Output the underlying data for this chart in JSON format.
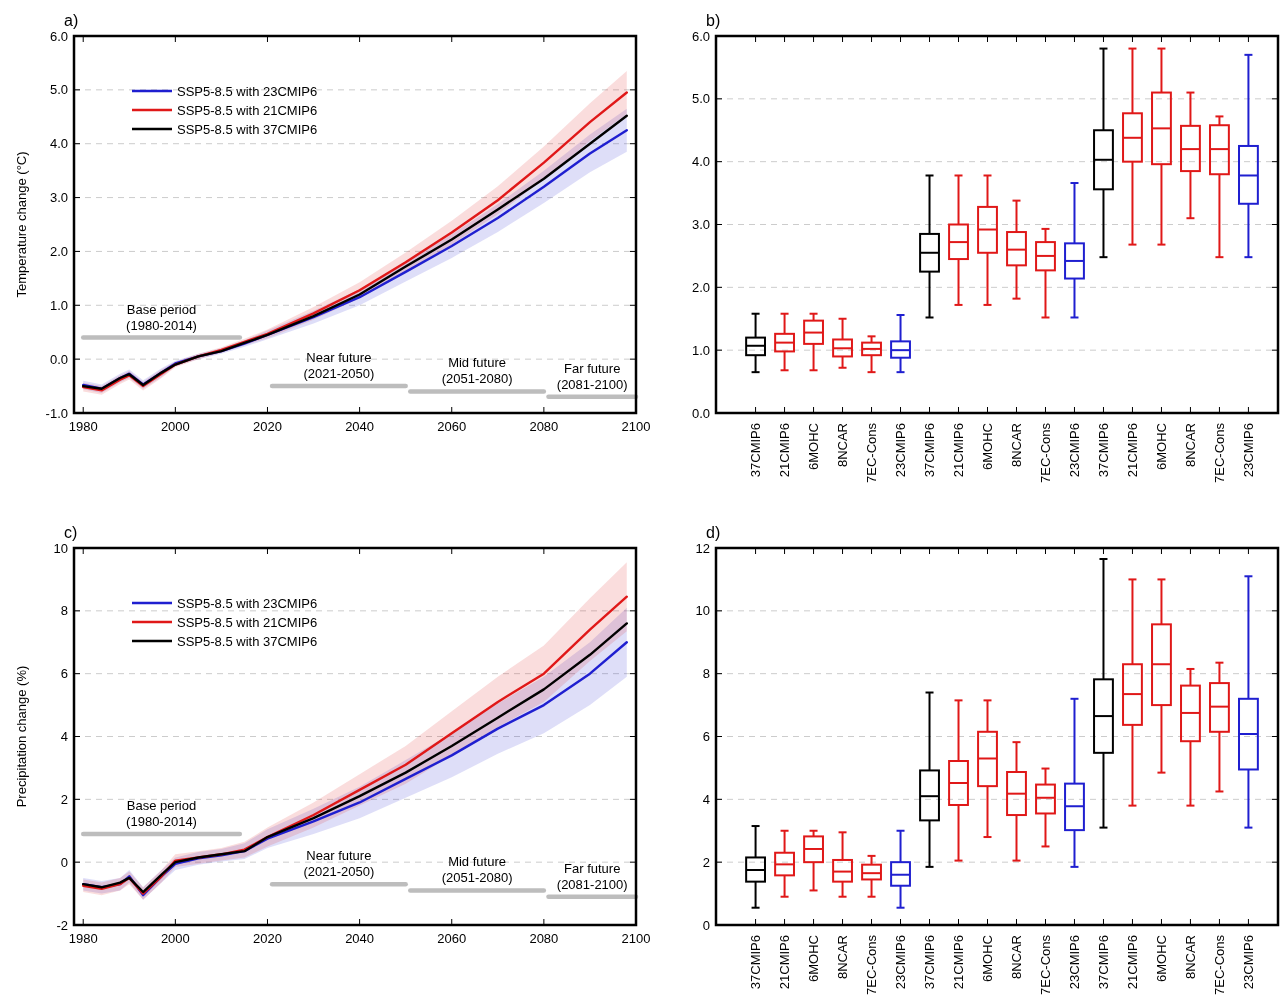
{
  "chart_data": [
    {
      "type": "line",
      "title": "a)",
      "ylabel": "Temperature change (°C)",
      "xlim": [
        1978,
        2100
      ],
      "xticks": [
        1980,
        2000,
        2020,
        2040,
        2060,
        2080,
        2100
      ],
      "ylim": [
        -1,
        6
      ],
      "yticks": [
        {
          "value": -1,
          "label": "-1.0"
        },
        {
          "value": 0,
          "label": "0.0"
        },
        {
          "value": 1,
          "label": "1.0"
        },
        {
          "value": 2,
          "label": "2.0"
        },
        {
          "value": 3,
          "label": "3.0"
        },
        {
          "value": 4,
          "label": "4.0"
        },
        {
          "value": 5,
          "label": "5.0"
        },
        {
          "value": 6,
          "label": "6.0"
        }
      ],
      "grid": "y",
      "legend": "top left",
      "x": [
        1980,
        1984,
        1988,
        1990,
        1993,
        1997,
        2000,
        2005,
        2010,
        2015,
        2020,
        2030,
        2040,
        2050,
        2060,
        2070,
        2080,
        2090,
        2098
      ],
      "series": [
        {
          "name": "SSP5-8.5 with 23CMIP6",
          "color": "#1f1fd0",
          "values": [
            -0.48,
            -0.55,
            -0.35,
            -0.27,
            -0.47,
            -0.25,
            -0.08,
            0.05,
            0.15,
            0.29,
            0.45,
            0.78,
            1.15,
            1.62,
            2.1,
            2.62,
            3.2,
            3.82,
            4.25
          ],
          "lower": [
            -0.56,
            -0.63,
            -0.43,
            -0.35,
            -0.55,
            -0.33,
            -0.13,
            0.0,
            0.1,
            0.23,
            0.37,
            0.66,
            1.0,
            1.44,
            1.88,
            2.36,
            2.9,
            3.47,
            3.85
          ],
          "upper": [
            -0.4,
            -0.47,
            -0.27,
            -0.19,
            -0.39,
            -0.17,
            -0.03,
            0.1,
            0.2,
            0.35,
            0.53,
            0.9,
            1.3,
            1.8,
            2.32,
            2.88,
            3.5,
            4.17,
            4.65
          ]
        },
        {
          "name": "SSP5-8.5 with 21CMIP6",
          "color": "#e01818",
          "values": [
            -0.52,
            -0.58,
            -0.38,
            -0.3,
            -0.5,
            -0.27,
            -0.1,
            0.05,
            0.17,
            0.32,
            0.47,
            0.85,
            1.28,
            1.8,
            2.35,
            2.95,
            3.65,
            4.4,
            4.95
          ],
          "lower": [
            -0.6,
            -0.66,
            -0.46,
            -0.38,
            -0.58,
            -0.35,
            -0.15,
            0.0,
            0.12,
            0.26,
            0.39,
            0.73,
            1.13,
            1.62,
            2.13,
            2.69,
            3.35,
            4.05,
            4.55
          ],
          "upper": [
            -0.44,
            -0.5,
            -0.3,
            -0.22,
            -0.42,
            -0.19,
            -0.05,
            0.1,
            0.22,
            0.38,
            0.55,
            0.97,
            1.43,
            1.98,
            2.57,
            3.21,
            3.95,
            4.75,
            5.35
          ]
        },
        {
          "name": "SSP5-8.5 with 37CMIP6",
          "color": "#000000",
          "values": [
            -0.5,
            -0.55,
            -0.35,
            -0.28,
            -0.48,
            -0.25,
            -0.1,
            0.05,
            0.15,
            0.3,
            0.45,
            0.8,
            1.2,
            1.72,
            2.22,
            2.78,
            3.35,
            4.0,
            4.52
          ]
        },
        {
          "type": "line",
          "color": "#bdbdbd",
          "x": [
            1980,
            2014
          ],
          "values": [
            0.4,
            0.4
          ]
        },
        {
          "type": "line",
          "color": "#bdbdbd",
          "x": [
            2021,
            2050
          ],
          "values": [
            -0.5,
            -0.5
          ]
        },
        {
          "type": "line",
          "color": "#bdbdbd",
          "x": [
            2051,
            2080
          ],
          "values": [
            -0.6,
            -0.6
          ]
        },
        {
          "type": "line",
          "color": "#bdbdbd",
          "x": [
            2081,
            2100
          ],
          "values": [
            -0.7,
            -0.7
          ]
        }
      ],
      "annotations": [
        {
          "text": "Base period\n(1980-2014)",
          "x": 1997,
          "y": 0.4
        },
        {
          "text": "Near future\n(2021-2050)",
          "x": 2035.5,
          "y": -0.5
        },
        {
          "text": "Mid future\n(2051-2080)",
          "x": 2065.5,
          "y": -0.6
        },
        {
          "text": "Far future\n(2081-2100)",
          "x": 2090.5,
          "y": -0.7
        }
      ]
    },
    {
      "type": "box",
      "title": "b)",
      "ylim": [
        0,
        6
      ],
      "yticks": [
        {
          "value": 0,
          "label": "0.0"
        },
        {
          "value": 1,
          "label": "1.0"
        },
        {
          "value": 2,
          "label": "2.0"
        },
        {
          "value": 3,
          "label": "3.0"
        },
        {
          "value": 4,
          "label": "4.0"
        },
        {
          "value": 5,
          "label": "5.0"
        },
        {
          "value": 6,
          "label": "6.0"
        }
      ],
      "grid": "y",
      "categories": [
        "37CMIP6",
        "21CMIP6",
        "6MOHC",
        "8NCAR",
        "7EC-Cons",
        "23CMIP6",
        "37CMIP6",
        "21CMIP6",
        "6MOHC",
        "8NCAR",
        "7EC-Cons",
        "23CMIP6",
        "37CMIP6",
        "21CMIP6",
        "6MOHC",
        "8NCAR",
        "7EC-Cons",
        "23CMIP6"
      ],
      "colors": [
        "#000000",
        "#e01818",
        "#e01818",
        "#e01818",
        "#e01818",
        "#1f1fd0",
        "#000000",
        "#e01818",
        "#e01818",
        "#e01818",
        "#e01818",
        "#1f1fd0",
        "#000000",
        "#e01818",
        "#e01818",
        "#e01818",
        "#e01818",
        "#1f1fd0"
      ],
      "boxes": [
        {
          "low": 0.65,
          "q1": 0.92,
          "median": 1.07,
          "q3": 1.2,
          "high": 1.58
        },
        {
          "low": 0.68,
          "q1": 0.98,
          "median": 1.12,
          "q3": 1.26,
          "high": 1.58
        },
        {
          "low": 0.68,
          "q1": 1.1,
          "median": 1.28,
          "q3": 1.47,
          "high": 1.58
        },
        {
          "low": 0.72,
          "q1": 0.9,
          "median": 1.03,
          "q3": 1.17,
          "high": 1.5
        },
        {
          "low": 0.65,
          "q1": 0.92,
          "median": 1.02,
          "q3": 1.12,
          "high": 1.22
        },
        {
          "low": 0.65,
          "q1": 0.88,
          "median": 1.0,
          "q3": 1.14,
          "high": 1.56
        },
        {
          "low": 1.52,
          "q1": 2.25,
          "median": 2.55,
          "q3": 2.85,
          "high": 3.78
        },
        {
          "low": 1.72,
          "q1": 2.45,
          "median": 2.72,
          "q3": 3.0,
          "high": 3.78
        },
        {
          "low": 1.72,
          "q1": 2.55,
          "median": 2.92,
          "q3": 3.28,
          "high": 3.78
        },
        {
          "low": 1.82,
          "q1": 2.35,
          "median": 2.6,
          "q3": 2.88,
          "high": 3.38
        },
        {
          "low": 1.52,
          "q1": 2.27,
          "median": 2.5,
          "q3": 2.72,
          "high": 2.93
        },
        {
          "low": 1.52,
          "q1": 2.14,
          "median": 2.42,
          "q3": 2.7,
          "high": 3.66
        },
        {
          "low": 2.48,
          "q1": 3.56,
          "median": 4.03,
          "q3": 4.5,
          "high": 5.8
        },
        {
          "low": 2.68,
          "q1": 4.0,
          "median": 4.38,
          "q3": 4.77,
          "high": 5.8
        },
        {
          "low": 2.68,
          "q1": 3.96,
          "median": 4.53,
          "q3": 5.1,
          "high": 5.8
        },
        {
          "low": 3.1,
          "q1": 3.85,
          "median": 4.2,
          "q3": 4.57,
          "high": 5.1
        },
        {
          "low": 2.48,
          "q1": 3.8,
          "median": 4.2,
          "q3": 4.58,
          "high": 4.72
        },
        {
          "low": 2.48,
          "q1": 3.33,
          "median": 3.78,
          "q3": 4.25,
          "high": 5.7
        }
      ]
    },
    {
      "type": "line",
      "title": "c)",
      "ylabel": "Precipitation change (%)",
      "xlim": [
        1978,
        2100
      ],
      "xticks": [
        1980,
        2000,
        2020,
        2040,
        2060,
        2080,
        2100
      ],
      "ylim": [
        -2,
        10
      ],
      "yticks": [
        -2,
        0,
        2,
        4,
        6,
        8,
        10
      ],
      "grid": "y",
      "legend": "top left",
      "x": [
        1980,
        1984,
        1988,
        1990,
        1993,
        1997,
        2000,
        2005,
        2010,
        2015,
        2020,
        2030,
        2040,
        2050,
        2060,
        2070,
        2080,
        2090,
        2098
      ],
      "series": [
        {
          "name": "SSP5-8.5 with 23CMIP6",
          "color": "#1f1fd0",
          "values": [
            -0.7,
            -0.8,
            -0.7,
            -0.45,
            -1.05,
            -0.45,
            -0.05,
            0.12,
            0.22,
            0.35,
            0.75,
            1.3,
            1.9,
            2.65,
            3.4,
            4.25,
            5.0,
            6.0,
            7.0
          ],
          "lower": [
            -0.9,
            -1.0,
            -0.9,
            -0.65,
            -1.2,
            -0.65,
            -0.25,
            -0.08,
            0.02,
            0.1,
            0.45,
            0.9,
            1.4,
            2.05,
            2.7,
            3.45,
            4.1,
            5.0,
            5.9
          ],
          "upper": [
            -0.5,
            -0.6,
            -0.5,
            -0.25,
            -0.8,
            -0.25,
            0.15,
            0.32,
            0.42,
            0.6,
            1.05,
            1.7,
            2.4,
            3.25,
            4.1,
            5.05,
            5.9,
            7.0,
            8.1
          ]
        },
        {
          "name": "SSP5-8.5 with 21CMIP6",
          "color": "#e01818",
          "values": [
            -0.75,
            -0.85,
            -0.7,
            -0.5,
            -1.0,
            -0.45,
            0.05,
            0.15,
            0.25,
            0.4,
            0.8,
            1.5,
            2.3,
            3.1,
            4.1,
            5.1,
            6.0,
            7.4,
            8.45
          ],
          "lower": [
            -0.95,
            -1.05,
            -0.9,
            -0.7,
            -1.2,
            -0.65,
            -0.15,
            -0.05,
            0.05,
            0.15,
            0.5,
            1.1,
            1.8,
            2.5,
            3.4,
            4.3,
            5.1,
            6.4,
            7.35
          ],
          "upper": [
            -0.55,
            -0.65,
            -0.5,
            -0.3,
            -0.8,
            -0.25,
            0.25,
            0.35,
            0.45,
            0.65,
            1.1,
            1.9,
            2.8,
            3.7,
            4.8,
            5.9,
            6.9,
            8.4,
            9.55
          ]
        },
        {
          "name": "SSP5-8.5 with 37CMIP6",
          "color": "#000000",
          "values": [
            -0.7,
            -0.8,
            -0.65,
            -0.5,
            -0.95,
            -0.4,
            0.0,
            0.15,
            0.25,
            0.35,
            0.8,
            1.4,
            2.1,
            2.85,
            3.7,
            4.6,
            5.5,
            6.6,
            7.6
          ]
        },
        {
          "type": "line",
          "color": "#bdbdbd",
          "x": [
            1980,
            2014
          ],
          "values": [
            0.9,
            0.9
          ]
        },
        {
          "type": "line",
          "color": "#bdbdbd",
          "x": [
            2021,
            2050
          ],
          "values": [
            -0.7,
            -0.7
          ]
        },
        {
          "type": "line",
          "color": "#bdbdbd",
          "x": [
            2051,
            2080
          ],
          "values": [
            -0.9,
            -0.9
          ]
        },
        {
          "type": "line",
          "color": "#bdbdbd",
          "x": [
            2081,
            2100
          ],
          "values": [
            -1.1,
            -1.1
          ]
        }
      ],
      "annotations": [
        {
          "text": "Base period\n(1980-2014)",
          "x": 1997,
          "y": 0.9
        },
        {
          "text": "Near future\n(2021-2050)",
          "x": 2035.5,
          "y": -0.7
        },
        {
          "text": "Mid future\n(2051-2080)",
          "x": 2065.5,
          "y": -0.9
        },
        {
          "text": "Far future\n(2081-2100)",
          "x": 2090.5,
          "y": -1.1
        }
      ]
    },
    {
      "type": "box",
      "title": "d)",
      "ylim": [
        0,
        12
      ],
      "yticks": [
        0,
        2,
        4,
        6,
        8,
        10,
        12
      ],
      "grid": "y",
      "categories": [
        "37CMIP6",
        "21CMIP6",
        "6MOHC",
        "8NCAR",
        "7EC-Cons",
        "23CMIP6",
        "37CMIP6",
        "21CMIP6",
        "6MOHC",
        "8NCAR",
        "7EC-Cons",
        "23CMIP6",
        "37CMIP6",
        "21CMIP6",
        "6MOHC",
        "8NCAR",
        "7EC-Cons",
        "23CMIP6"
      ],
      "colors": [
        "#000000",
        "#e01818",
        "#e01818",
        "#e01818",
        "#e01818",
        "#1f1fd0",
        "#000000",
        "#e01818",
        "#e01818",
        "#e01818",
        "#e01818",
        "#1f1fd0",
        "#000000",
        "#e01818",
        "#e01818",
        "#e01818",
        "#e01818",
        "#1f1fd0"
      ],
      "boxes": [
        {
          "low": 0.55,
          "q1": 1.38,
          "median": 1.75,
          "q3": 2.15,
          "high": 3.15
        },
        {
          "low": 0.9,
          "q1": 1.58,
          "median": 1.93,
          "q3": 2.3,
          "high": 3.0
        },
        {
          "low": 1.1,
          "q1": 2.0,
          "median": 2.42,
          "q3": 2.82,
          "high": 3.0
        },
        {
          "low": 0.9,
          "q1": 1.38,
          "median": 1.7,
          "q3": 2.07,
          "high": 2.95
        },
        {
          "low": 0.9,
          "q1": 1.45,
          "median": 1.65,
          "q3": 1.92,
          "high": 2.2
        },
        {
          "low": 0.55,
          "q1": 1.25,
          "median": 1.6,
          "q3": 2.0,
          "high": 3.0
        },
        {
          "low": 1.85,
          "q1": 3.33,
          "median": 4.1,
          "q3": 4.92,
          "high": 7.4
        },
        {
          "low": 2.05,
          "q1": 3.82,
          "median": 4.52,
          "q3": 5.22,
          "high": 7.15
        },
        {
          "low": 2.8,
          "q1": 4.42,
          "median": 5.3,
          "q3": 6.15,
          "high": 7.15
        },
        {
          "low": 2.05,
          "q1": 3.5,
          "median": 4.18,
          "q3": 4.87,
          "high": 5.82
        },
        {
          "low": 2.5,
          "q1": 3.55,
          "median": 4.05,
          "q3": 4.47,
          "high": 4.98
        },
        {
          "low": 1.85,
          "q1": 3.02,
          "median": 3.78,
          "q3": 4.5,
          "high": 7.2
        },
        {
          "low": 3.1,
          "q1": 5.48,
          "median": 6.65,
          "q3": 7.82,
          "high": 11.65
        },
        {
          "low": 3.8,
          "q1": 6.37,
          "median": 7.35,
          "q3": 8.3,
          "high": 11.0
        },
        {
          "low": 4.85,
          "q1": 7.0,
          "median": 8.3,
          "q3": 9.57,
          "high": 11.0
        },
        {
          "low": 3.8,
          "q1": 5.85,
          "median": 6.75,
          "q3": 7.62,
          "high": 8.15
        },
        {
          "low": 4.25,
          "q1": 6.15,
          "median": 6.95,
          "q3": 7.7,
          "high": 8.35
        },
        {
          "low": 3.1,
          "q1": 4.95,
          "median": 6.08,
          "q3": 7.2,
          "high": 11.1
        }
      ]
    }
  ]
}
